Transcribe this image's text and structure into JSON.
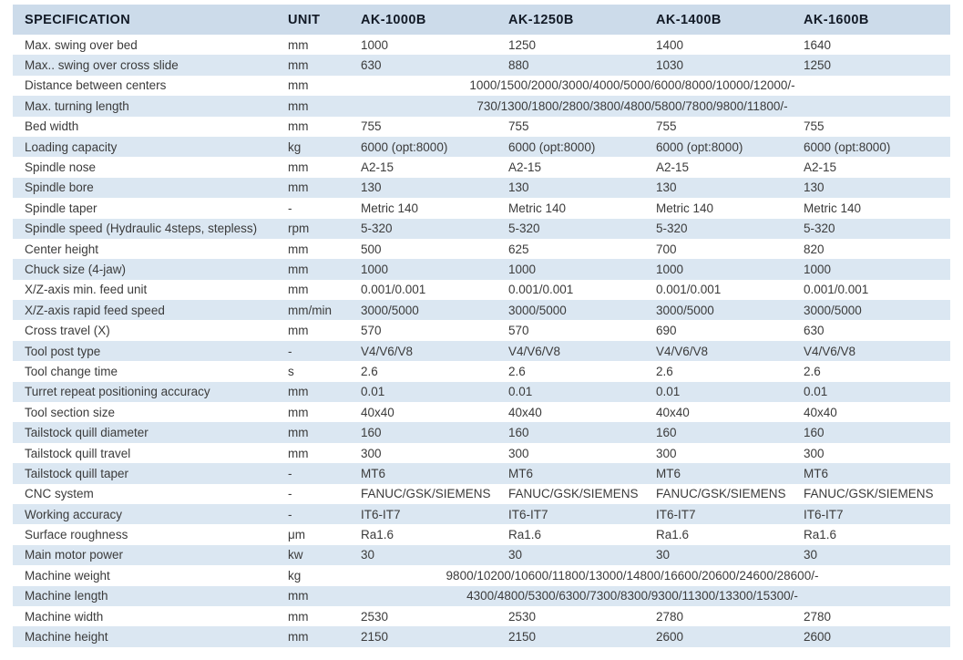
{
  "table": {
    "headers": [
      "SPECIFICATION",
      "UNIT",
      "AK-1000B",
      "AK-1250B",
      "AK-1400B",
      "AK-1600B"
    ],
    "rows": [
      {
        "label": "Max. swing over bed",
        "unit": "mm",
        "values": [
          "1000",
          "1250",
          "1400",
          "1640"
        ]
      },
      {
        "label": "Max.. swing over cross slide",
        "unit": "mm",
        "values": [
          "630",
          "880",
          "1030",
          "1250"
        ]
      },
      {
        "label": "Distance between centers",
        "unit": "mm",
        "span": "1000/1500/2000/3000/4000/5000/6000/8000/10000/12000/-"
      },
      {
        "label": "Max. turning length",
        "unit": "mm",
        "span": "730/1300/1800/2800/3800/4800/5800/7800/9800/11800/-"
      },
      {
        "label": "Bed width",
        "unit": "mm",
        "values": [
          "755",
          "755",
          "755",
          "755"
        ]
      },
      {
        "label": "Loading capacity",
        "unit": "kg",
        "values": [
          "6000 (opt:8000)",
          "6000 (opt:8000)",
          "6000 (opt:8000)",
          "6000 (opt:8000)"
        ]
      },
      {
        "label": "Spindle nose",
        "unit": "mm",
        "values": [
          "A2-15",
          "A2-15",
          "A2-15",
          "A2-15"
        ]
      },
      {
        "label": "Spindle bore",
        "unit": "mm",
        "values": [
          "130",
          "130",
          "130",
          "130"
        ]
      },
      {
        "label": "Spindle taper",
        "unit": "-",
        "values": [
          "Metric 140",
          "Metric 140",
          "Metric 140",
          "Metric 140"
        ]
      },
      {
        "label": "Spindle speed (Hydraulic 4steps, stepless)",
        "unit": "rpm",
        "values": [
          "5-320",
          "5-320",
          "5-320",
          "5-320"
        ]
      },
      {
        "label": "Center height",
        "unit": "mm",
        "values": [
          "500",
          "625",
          "700",
          "820"
        ]
      },
      {
        "label": "Chuck size (4-jaw)",
        "unit": "mm",
        "values": [
          "1000",
          "1000",
          "1000",
          "1000"
        ]
      },
      {
        "label": "X/Z-axis min. feed unit",
        "unit": "mm",
        "values": [
          "0.001/0.001",
          "0.001/0.001",
          "0.001/0.001",
          "0.001/0.001"
        ]
      },
      {
        "label": "X/Z-axis rapid feed speed",
        "unit": "mm/min",
        "values": [
          "3000/5000",
          "3000/5000",
          "3000/5000",
          "3000/5000"
        ]
      },
      {
        "label": "Cross travel (X)",
        "unit": "mm",
        "values": [
          "570",
          "570",
          "690",
          "630"
        ]
      },
      {
        "label": "Tool post type",
        "unit": "-",
        "values": [
          "V4/V6/V8",
          "V4/V6/V8",
          "V4/V6/V8",
          "V4/V6/V8"
        ]
      },
      {
        "label": "Tool change time",
        "unit": "s",
        "values": [
          "2.6",
          "2.6",
          "2.6",
          "2.6"
        ]
      },
      {
        "label": "Turret repeat positioning accuracy",
        "unit": "mm",
        "values": [
          "0.01",
          "0.01",
          "0.01",
          "0.01"
        ]
      },
      {
        "label": "Tool section size",
        "unit": "mm",
        "values": [
          "40x40",
          "40x40",
          "40x40",
          "40x40"
        ]
      },
      {
        "label": "Tailstock quill diameter",
        "unit": "mm",
        "values": [
          "160",
          "160",
          "160",
          "160"
        ]
      },
      {
        "label": "Tailstock quill travel",
        "unit": "mm",
        "values": [
          "300",
          "300",
          "300",
          "300"
        ]
      },
      {
        "label": "Tailstock quill taper",
        "unit": "-",
        "values": [
          "MT6",
          "MT6",
          "MT6",
          "MT6"
        ]
      },
      {
        "label": "CNC system",
        "unit": "-",
        "values": [
          "FANUC/GSK/SIEMENS",
          "FANUC/GSK/SIEMENS",
          "FANUC/GSK/SIEMENS",
          "FANUC/GSK/SIEMENS"
        ]
      },
      {
        "label": "Working accuracy",
        "unit": "-",
        "values": [
          "IT6-IT7",
          "IT6-IT7",
          "IT6-IT7",
          "IT6-IT7"
        ]
      },
      {
        "label": "Surface roughness",
        "unit": "μm",
        "values": [
          "Ra1.6",
          "Ra1.6",
          "Ra1.6",
          "Ra1.6"
        ]
      },
      {
        "label": "Main motor power",
        "unit": "kw",
        "values": [
          "30",
          "30",
          "30",
          "30"
        ]
      },
      {
        "label": "Machine weight",
        "unit": "kg",
        "span": "9800/10200/10600/11800/13000/14800/16600/20600/24600/28600/-"
      },
      {
        "label": "Machine length",
        "unit": "mm",
        "span": "4300/4800/5300/6300/7300/8300/9300/11300/13300/15300/-"
      },
      {
        "label": "Machine width",
        "unit": "mm",
        "values": [
          "2530",
          "2530",
          "2780",
          "2780"
        ]
      },
      {
        "label": "Machine height",
        "unit": "mm",
        "values": [
          "2150",
          "2150",
          "2600",
          "2600"
        ]
      }
    ]
  },
  "colors": {
    "header_bg": "#ccdbea",
    "stripe_bg": "#dbe7f2",
    "text": "#3b3b3b",
    "header_text": "#121a26"
  }
}
